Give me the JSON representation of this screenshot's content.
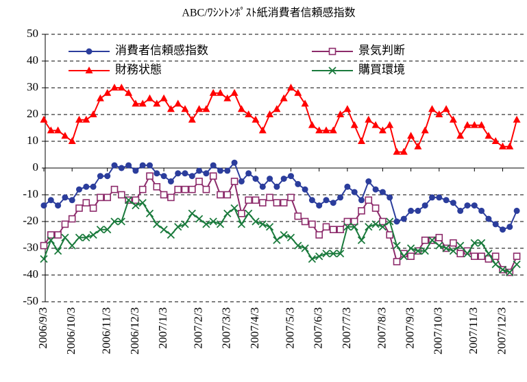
{
  "chart_data": {
    "type": "line",
    "title": "ABC/ﾜｼﾝﾄﾝﾎﾟｽﾄ紙消費者信頼感指数",
    "categories": [
      "2006/9/3",
      null,
      null,
      null,
      "2006/10/3",
      null,
      null,
      null,
      null,
      "2006/11/3",
      null,
      null,
      null,
      "2006/12/3",
      null,
      null,
      null,
      "2007/1/3",
      null,
      null,
      null,
      null,
      "2007/2/3",
      null,
      null,
      null,
      "2007/3/3",
      null,
      null,
      null,
      "2007/4/3",
      null,
      null,
      null,
      null,
      "2007/5/3",
      null,
      null,
      null,
      "2007/6/3",
      null,
      null,
      null,
      "2007/7/3",
      null,
      null,
      null,
      null,
      "2007/8/3",
      null,
      null,
      null,
      "2007/9/3",
      null,
      null,
      null,
      "2007/10/3",
      null,
      null,
      null,
      null,
      "2007/11/3",
      null,
      null,
      null,
      "2007/12/3",
      null,
      null
    ],
    "series": [
      {
        "name": "消費者信頼感指数",
        "color": "#2b3d9c",
        "marker": "circle",
        "values": [
          -14,
          -12,
          -14,
          -11,
          -12,
          -8,
          -7,
          -7,
          -3,
          -3,
          1,
          0,
          1,
          -1,
          1,
          1,
          -2,
          -3,
          -5,
          -2,
          -2,
          -3,
          -1,
          -2,
          1,
          -1,
          -1,
          2,
          -5,
          -2,
          -4,
          -7,
          -4,
          -7,
          -4,
          -3,
          -6,
          -8,
          -12,
          -14,
          -12,
          -13,
          -11,
          -7,
          -9,
          -12,
          -5,
          -8,
          -9,
          -11,
          -20,
          -19,
          -16,
          -16,
          -14,
          -11,
          -11,
          -12,
          -13,
          -16,
          -14,
          -14,
          -16,
          -19,
          -21,
          -23,
          -22,
          -16
        ]
      },
      {
        "name": "景気判断",
        "color": "#8c2a6a",
        "marker": "square",
        "values": [
          -29,
          -25,
          -25,
          -21,
          -19,
          -15,
          -13,
          -15,
          -11,
          -11,
          -8,
          -10,
          -12,
          -12,
          -8,
          -3,
          -7,
          -10,
          -11,
          -8,
          -8,
          -8,
          -5,
          -8,
          -3,
          -10,
          -10,
          -5,
          -17,
          -12,
          -12,
          -13,
          -11,
          -13,
          -13,
          -11,
          -18,
          -20,
          -21,
          -25,
          -22,
          -23,
          -23,
          -20,
          -20,
          -16,
          -12,
          -15,
          -20,
          -25,
          -35,
          -32,
          -33,
          -31,
          -27,
          -27,
          -26,
          -30,
          -28,
          -32,
          -31,
          -33,
          -33,
          -34,
          -33,
          -38,
          -39,
          -33
        ]
      },
      {
        "name": "財務状態",
        "color": "#ff0000",
        "marker": "triangle",
        "values": [
          18,
          14,
          14,
          12,
          10,
          18,
          18,
          20,
          26,
          28,
          30,
          30,
          28,
          24,
          24,
          26,
          24,
          26,
          22,
          24,
          22,
          18,
          22,
          22,
          28,
          28,
          26,
          28,
          22,
          20,
          18,
          14,
          20,
          22,
          26,
          30,
          28,
          24,
          16,
          14,
          14,
          14,
          20,
          22,
          16,
          10,
          18,
          16,
          14,
          16,
          6,
          6,
          12,
          8,
          14,
          22,
          20,
          22,
          18,
          12,
          16,
          16,
          16,
          12,
          10,
          8,
          8,
          18
        ]
      },
      {
        "name": "購買環境",
        "color": "#1a7a3c",
        "marker": "x",
        "values": [
          -34,
          -27,
          -31,
          -26,
          -29,
          -26,
          -26,
          -25,
          -23,
          -23,
          -20,
          -20,
          -12,
          -14,
          -13,
          -17,
          -21,
          -23,
          -25,
          -22,
          -21,
          -17,
          -19,
          -21,
          -20,
          -21,
          -17,
          -15,
          -21,
          -17,
          -20,
          -21,
          -22,
          -27,
          -25,
          -26,
          -29,
          -30,
          -34,
          -33,
          -32,
          -32,
          -32,
          -22,
          -22,
          -27,
          -22,
          -21,
          -22,
          -20,
          -29,
          -33,
          -30,
          -31,
          -31,
          -27,
          -29,
          -30,
          -31,
          -29,
          -32,
          -28,
          -28,
          -32,
          -36,
          -38,
          -39,
          -36
        ]
      }
    ],
    "ylim": [
      -50,
      50
    ],
    "yticks": [
      -50,
      -40,
      -30,
      -20,
      -10,
      0,
      10,
      20,
      30,
      40,
      50
    ],
    "grid": true,
    "legend": "upper left"
  }
}
